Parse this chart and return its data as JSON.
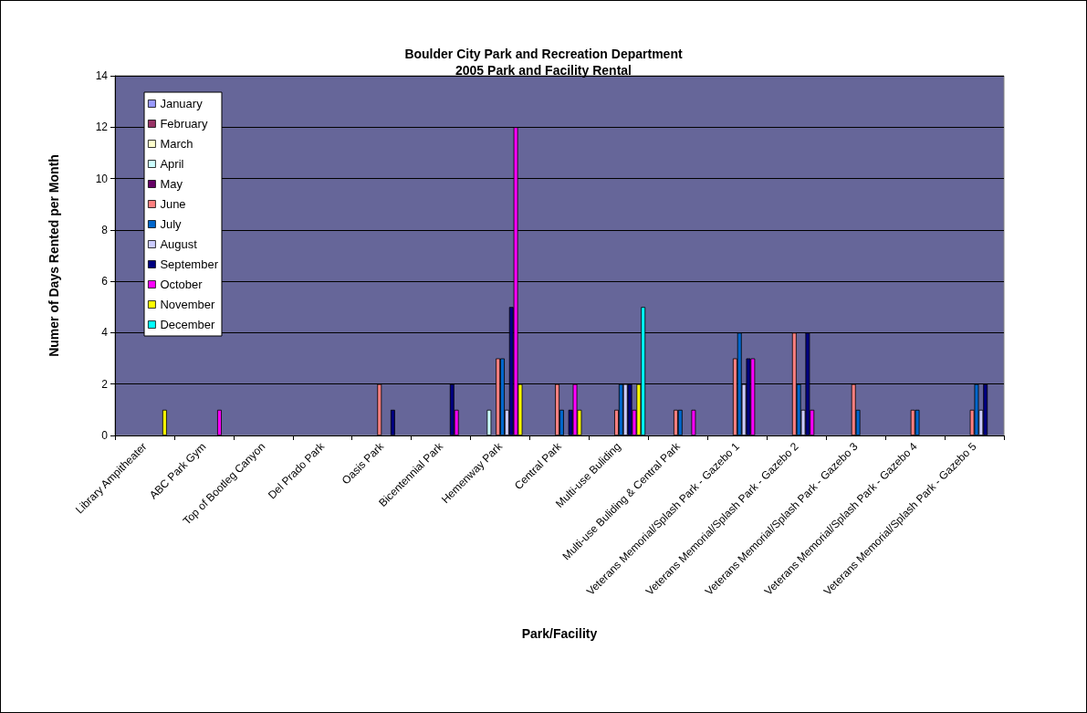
{
  "chart_data": {
    "type": "bar",
    "title": "Boulder City Park and Recreation Department",
    "subtitle": "2005 Park and Facility Rental",
    "xlabel": "Park/Facility",
    "ylabel": "Numer of Days Rented per Month",
    "categories": [
      "Library Ampitheater",
      "ABC Park Gym",
      "Top of Bootleg Canyon",
      "Del Prado Park",
      "Oasis Park",
      "Bicentennial Park",
      "Hemenway Park",
      "Central Park",
      "Multi-use Buliding",
      "Multi-use Buliding & Central Park",
      "Veterans Memorial/Splash Park - Gazebo 1",
      "Veterans Memorial/Splash Park - Gazebo 2",
      "Veterans Memorial/Splash Park - Gazebo 3",
      "Veterans Memorial/Splash Park - Gazebo 4",
      "Veterans Memorial/Splash Park - Gazebo 5"
    ],
    "series": [
      {
        "name": "January",
        "color": "#9999ff",
        "values": [
          0,
          0,
          0,
          0,
          0,
          0,
          0,
          0,
          0,
          0,
          0,
          0,
          0,
          0,
          0
        ]
      },
      {
        "name": "February",
        "color": "#993366",
        "values": [
          0,
          0,
          0,
          0,
          0,
          0,
          0,
          0,
          0,
          0,
          0,
          0,
          0,
          0,
          0
        ]
      },
      {
        "name": "March",
        "color": "#ffffcc",
        "values": [
          0,
          0,
          0,
          0,
          0,
          0,
          0,
          0,
          0,
          0,
          0,
          0,
          0,
          0,
          0
        ]
      },
      {
        "name": "April",
        "color": "#ccffff",
        "values": [
          0,
          0,
          0,
          0,
          0,
          0,
          1,
          0,
          0,
          0,
          0,
          0,
          0,
          0,
          0
        ]
      },
      {
        "name": "May",
        "color": "#660066",
        "values": [
          0,
          0,
          0,
          0,
          0,
          0,
          0,
          0,
          0,
          0,
          0,
          0,
          0,
          0,
          0
        ]
      },
      {
        "name": "June",
        "color": "#ff8080",
        "values": [
          0,
          0,
          0,
          0,
          2,
          0,
          3,
          2,
          1,
          1,
          3,
          4,
          2,
          1,
          1
        ]
      },
      {
        "name": "July",
        "color": "#0066cc",
        "values": [
          0,
          0,
          0,
          0,
          0,
          0,
          3,
          1,
          2,
          1,
          4,
          2,
          1,
          1,
          2
        ]
      },
      {
        "name": "August",
        "color": "#ccccff",
        "values": [
          0,
          0,
          0,
          0,
          0,
          0,
          1,
          0,
          2,
          0,
          2,
          1,
          0,
          0,
          1
        ]
      },
      {
        "name": "September",
        "color": "#000080",
        "values": [
          0,
          0,
          0,
          0,
          1,
          2,
          5,
          1,
          2,
          0,
          3,
          4,
          0,
          0,
          2
        ]
      },
      {
        "name": "October",
        "color": "#ff00ff",
        "values": [
          0,
          1,
          0,
          0,
          0,
          1,
          12,
          2,
          1,
          1,
          3,
          1,
          0,
          0,
          0
        ]
      },
      {
        "name": "November",
        "color": "#ffff00",
        "values": [
          1,
          0,
          0,
          0,
          0,
          0,
          2,
          1,
          2,
          0,
          0,
          0,
          0,
          0,
          0
        ]
      },
      {
        "name": "December",
        "color": "#00ffff",
        "values": [
          0,
          0,
          0,
          0,
          0,
          0,
          0,
          0,
          5,
          0,
          0,
          0,
          0,
          0,
          0
        ]
      }
    ],
    "ylim": [
      0,
      14
    ],
    "yticks": [
      0,
      2,
      4,
      6,
      8,
      10,
      12,
      14
    ],
    "grid": "y",
    "legend": "top left"
  }
}
